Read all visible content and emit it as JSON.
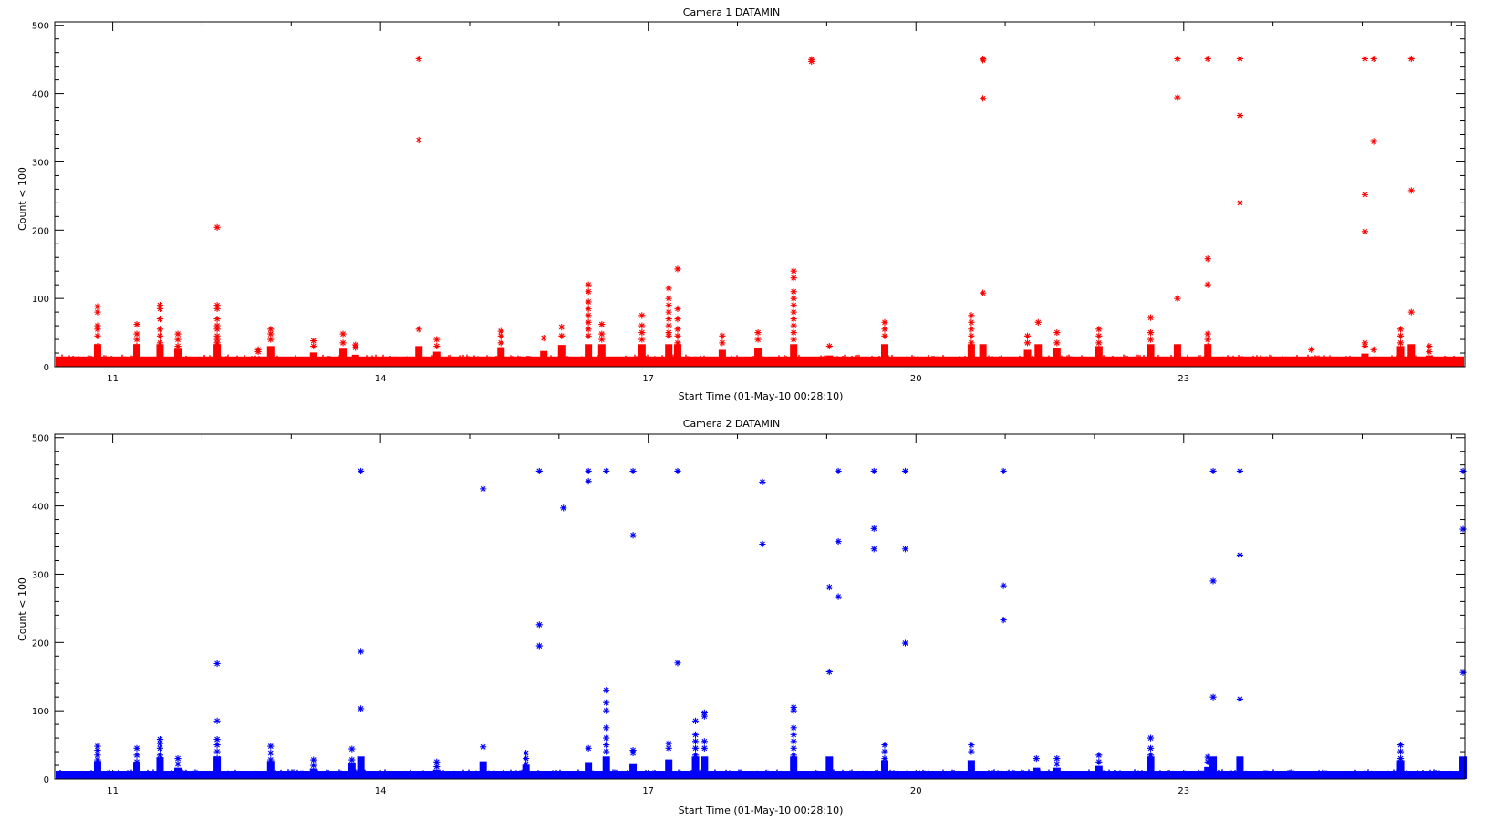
{
  "chart_data": [
    {
      "type": "scatter",
      "title": "Camera 1 DATAMIN",
      "xlabel": "Start Time (01-May-10 00:28:10)",
      "ylabel": "Count < 100",
      "xlim": [
        10.35,
        26.15
      ],
      "ylim": [
        0,
        505
      ],
      "xticks": [
        11,
        14,
        17,
        20,
        23
      ],
      "yticks": [
        0,
        100,
        200,
        300,
        400,
        500
      ],
      "grid": false,
      "marker": "asterisk",
      "color": "#ff0000",
      "baseline": {
        "typical_max": 15,
        "noise_min": 2
      },
      "spikes": [
        {
          "x": 10.83,
          "values": [
            88,
            80,
            60,
            55,
            45,
            30
          ]
        },
        {
          "x": 11.27,
          "values": [
            62,
            48,
            40,
            30
          ]
        },
        {
          "x": 11.53,
          "values": [
            90,
            85,
            70,
            55,
            45,
            35
          ]
        },
        {
          "x": 11.73,
          "values": [
            48,
            40,
            30
          ]
        },
        {
          "x": 12.17,
          "values": [
            204,
            90,
            85,
            70,
            60,
            55,
            45,
            40,
            35,
            30
          ]
        },
        {
          "x": 12.63,
          "values": [
            25,
            22
          ]
        },
        {
          "x": 12.77,
          "values": [
            55,
            48,
            40
          ]
        },
        {
          "x": 13.25,
          "values": [
            38,
            30
          ]
        },
        {
          "x": 13.58,
          "values": [
            48,
            35
          ]
        },
        {
          "x": 13.72,
          "values": [
            32,
            28
          ]
        },
        {
          "x": 14.43,
          "values": [
            451,
            332,
            55
          ]
        },
        {
          "x": 14.63,
          "values": [
            40,
            30
          ]
        },
        {
          "x": 15.35,
          "values": [
            52,
            45,
            35
          ]
        },
        {
          "x": 15.83,
          "values": [
            42
          ]
        },
        {
          "x": 16.03,
          "values": [
            58,
            45
          ]
        },
        {
          "x": 16.33,
          "values": [
            120,
            110,
            95,
            85,
            75,
            65,
            55,
            45
          ]
        },
        {
          "x": 16.48,
          "values": [
            62,
            48,
            40
          ]
        },
        {
          "x": 16.93,
          "values": [
            75,
            60,
            50,
            40
          ]
        },
        {
          "x": 17.23,
          "values": [
            115,
            100,
            90,
            80,
            70,
            60,
            50,
            45
          ]
        },
        {
          "x": 17.33,
          "values": [
            143,
            85,
            70,
            55,
            45,
            35
          ]
        },
        {
          "x": 17.83,
          "values": [
            45,
            35
          ]
        },
        {
          "x": 18.23,
          "values": [
            50,
            40
          ]
        },
        {
          "x": 18.63,
          "values": [
            140,
            130,
            110,
            100,
            90,
            80,
            70,
            60,
            50,
            40
          ]
        },
        {
          "x": 18.83,
          "values": [
            450,
            447
          ]
        },
        {
          "x": 19.03,
          "values": [
            30
          ]
        },
        {
          "x": 19.65,
          "values": [
            65,
            55,
            45
          ]
        },
        {
          "x": 20.62,
          "values": [
            75,
            65,
            55,
            45,
            35
          ]
        },
        {
          "x": 20.75,
          "values": [
            451,
            449,
            393,
            108
          ]
        },
        {
          "x": 21.25,
          "values": [
            45,
            35
          ]
        },
        {
          "x": 21.37,
          "values": [
            65
          ]
        },
        {
          "x": 21.58,
          "values": [
            50,
            35
          ]
        },
        {
          "x": 22.05,
          "values": [
            55,
            45,
            35
          ]
        },
        {
          "x": 22.63,
          "values": [
            72,
            50,
            40
          ]
        },
        {
          "x": 22.93,
          "values": [
            451,
            394,
            100
          ]
        },
        {
          "x": 23.27,
          "values": [
            451,
            158,
            120,
            48,
            40,
            30
          ]
        },
        {
          "x": 23.63,
          "values": [
            451,
            368,
            240
          ]
        },
        {
          "x": 24.43,
          "values": [
            25
          ]
        },
        {
          "x": 25.03,
          "values": [
            451,
            252,
            198,
            35,
            30
          ]
        },
        {
          "x": 25.13,
          "values": [
            451,
            330,
            25
          ]
        },
        {
          "x": 25.43,
          "values": [
            55,
            45,
            35
          ]
        },
        {
          "x": 25.55,
          "values": [
            451,
            258,
            80
          ]
        },
        {
          "x": 25.75,
          "values": [
            30,
            22
          ]
        }
      ]
    },
    {
      "type": "scatter",
      "title": "Camera 2 DATAMIN",
      "xlabel": "Start Time (01-May-10 00:28:10)",
      "ylabel": "Count < 100",
      "xlim": [
        10.35,
        26.15
      ],
      "ylim": [
        0,
        505
      ],
      "xticks": [
        11,
        14,
        17,
        20,
        23
      ],
      "yticks": [
        0,
        100,
        200,
        300,
        400,
        500
      ],
      "grid": false,
      "marker": "asterisk",
      "color": "#0000ff",
      "baseline": {
        "typical_max": 12,
        "noise_min": 2
      },
      "spikes": [
        {
          "x": 10.83,
          "values": [
            48,
            42,
            35,
            28
          ]
        },
        {
          "x": 11.27,
          "values": [
            45,
            35,
            25
          ]
        },
        {
          "x": 11.53,
          "values": [
            58,
            52,
            45,
            35,
            28
          ]
        },
        {
          "x": 11.73,
          "values": [
            30,
            22
          ]
        },
        {
          "x": 12.17,
          "values": [
            169,
            85,
            58,
            50,
            40,
            30
          ]
        },
        {
          "x": 12.77,
          "values": [
            48,
            38,
            28
          ]
        },
        {
          "x": 13.25,
          "values": [
            28,
            20
          ]
        },
        {
          "x": 13.68,
          "values": [
            44,
            28
          ]
        },
        {
          "x": 13.78,
          "values": [
            451,
            187,
            103
          ]
        },
        {
          "x": 14.63,
          "values": [
            25,
            18
          ]
        },
        {
          "x": 15.15,
          "values": [
            425,
            47
          ]
        },
        {
          "x": 15.63,
          "values": [
            38,
            30,
            22
          ]
        },
        {
          "x": 15.78,
          "values": [
            451,
            226,
            195
          ]
        },
        {
          "x": 16.05,
          "values": [
            397
          ]
        },
        {
          "x": 16.33,
          "values": [
            451,
            436,
            45
          ]
        },
        {
          "x": 16.53,
          "values": [
            451,
            130,
            112,
            100,
            75,
            60,
            50,
            40
          ]
        },
        {
          "x": 16.83,
          "values": [
            451,
            357,
            42,
            38
          ]
        },
        {
          "x": 17.23,
          "values": [
            52,
            45
          ]
        },
        {
          "x": 17.33,
          "values": [
            451,
            170
          ]
        },
        {
          "x": 17.53,
          "values": [
            85,
            65,
            55,
            45,
            35
          ]
        },
        {
          "x": 17.63,
          "values": [
            97,
            92,
            55,
            45
          ]
        },
        {
          "x": 18.28,
          "values": [
            435,
            344
          ]
        },
        {
          "x": 18.63,
          "values": [
            105,
            100,
            75,
            65,
            55,
            45,
            35,
            28
          ]
        },
        {
          "x": 19.03,
          "values": [
            281,
            157
          ]
        },
        {
          "x": 19.13,
          "values": [
            451,
            348,
            267
          ]
        },
        {
          "x": 19.53,
          "values": [
            451,
            367,
            337
          ]
        },
        {
          "x": 19.65,
          "values": [
            50,
            40,
            30
          ]
        },
        {
          "x": 19.88,
          "values": [
            451,
            337,
            199
          ]
        },
        {
          "x": 20.62,
          "values": [
            50,
            40
          ]
        },
        {
          "x": 20.98,
          "values": [
            451,
            283,
            233
          ]
        },
        {
          "x": 21.35,
          "values": [
            30
          ]
        },
        {
          "x": 21.58,
          "values": [
            30,
            22
          ]
        },
        {
          "x": 22.05,
          "values": [
            35,
            25
          ]
        },
        {
          "x": 22.63,
          "values": [
            60,
            45,
            35
          ]
        },
        {
          "x": 23.27,
          "values": [
            32,
            25
          ]
        },
        {
          "x": 23.33,
          "values": [
            451,
            290,
            120
          ]
        },
        {
          "x": 23.63,
          "values": [
            451,
            328,
            117
          ]
        },
        {
          "x": 25.43,
          "values": [
            50,
            40,
            30
          ]
        },
        {
          "x": 26.13,
          "values": [
            451,
            366,
            156
          ]
        }
      ]
    }
  ]
}
